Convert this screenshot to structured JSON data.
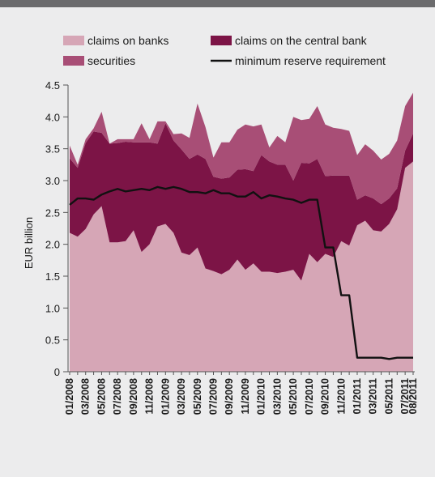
{
  "chart_data": {
    "type": "area",
    "title": "",
    "ylabel": "EUR billion",
    "xlabel": "",
    "ylim": [
      0,
      4.5
    ],
    "yticks": [
      0,
      0.5,
      1.0,
      1.5,
      2.0,
      2.5,
      3.0,
      3.5,
      4.0,
      4.5
    ],
    "ytick_labels": [
      "0",
      "0.5",
      "1.0",
      "1.5",
      "2.0",
      "2.5",
      "3.0",
      "3.5",
      "4.0",
      "4.5"
    ],
    "x": [
      "01/2008",
      "02/2008",
      "03/2008",
      "04/2008",
      "05/2008",
      "06/2008",
      "07/2008",
      "08/2008",
      "09/2008",
      "10/2008",
      "11/2008",
      "12/2008",
      "01/2009",
      "02/2009",
      "03/2009",
      "04/2009",
      "05/2009",
      "06/2009",
      "07/2009",
      "08/2009",
      "09/2009",
      "10/2009",
      "11/2009",
      "12/2009",
      "01/2010",
      "02/2010",
      "03/2010",
      "04/2010",
      "05/2010",
      "06/2010",
      "07/2010",
      "08/2010",
      "09/2010",
      "10/2010",
      "11/2010",
      "12/2010",
      "01/2011",
      "02/2011",
      "03/2011",
      "04/2011",
      "05/2011",
      "06/2011",
      "07/2011",
      "08/2011"
    ],
    "xtick_labels": [
      "01/2008",
      "03/2008",
      "05/2008",
      "07/2008",
      "09/2008",
      "11/2008",
      "01/2009",
      "03/2009",
      "05/2009",
      "07/2009",
      "09/2009",
      "11/2009",
      "01/2010",
      "03/2010",
      "05/2010",
      "07/2010",
      "09/2010",
      "11/2010",
      "01/2011",
      "03/2011",
      "05/2011",
      "07/2011",
      "08/2011"
    ],
    "legend_position": "top",
    "series": [
      {
        "name": "claims on banks",
        "kind": "stacked-area",
        "color": "#d6a6b6",
        "values": [
          2.18,
          2.12,
          2.24,
          2.47,
          2.6,
          2.03,
          2.03,
          2.05,
          2.22,
          1.88,
          2.0,
          2.28,
          2.32,
          2.18,
          1.87,
          1.83,
          1.95,
          1.62,
          1.58,
          1.53,
          1.6,
          1.76,
          1.6,
          1.7,
          1.57,
          1.57,
          1.55,
          1.57,
          1.6,
          1.43,
          1.85,
          1.72,
          1.85,
          1.8,
          2.05,
          1.98,
          2.3,
          2.37,
          2.22,
          2.2,
          2.32,
          2.55,
          3.2,
          3.3
        ]
      },
      {
        "name": "claims on the central bank",
        "kind": "stacked-area",
        "color": "#7c1446",
        "values": [
          1.17,
          1.08,
          1.35,
          1.3,
          1.15,
          1.55,
          1.56,
          1.56,
          1.38,
          1.72,
          1.6,
          1.3,
          1.58,
          1.45,
          1.62,
          1.51,
          1.46,
          1.72,
          1.48,
          1.5,
          1.45,
          1.41,
          1.58,
          1.45,
          1.83,
          1.73,
          1.7,
          1.68,
          1.4,
          1.85,
          1.42,
          1.62,
          1.22,
          1.28,
          1.03,
          1.1,
          0.4,
          0.4,
          0.5,
          0.43,
          0.4,
          0.33,
          0.27,
          0.44
        ]
      },
      {
        "name": "securities",
        "kind": "stacked-area",
        "color": "#a84e76",
        "values": [
          0.2,
          0.05,
          0.06,
          0.05,
          0.33,
          0.0,
          0.06,
          0.04,
          0.05,
          0.3,
          0.05,
          0.35,
          0.03,
          0.1,
          0.25,
          0.33,
          0.8,
          0.5,
          0.3,
          0.57,
          0.55,
          0.63,
          0.7,
          0.7,
          0.48,
          0.22,
          0.45,
          0.35,
          1.0,
          0.67,
          0.7,
          0.83,
          0.81,
          0.75,
          0.73,
          0.7,
          0.7,
          0.8,
          0.75,
          0.7,
          0.7,
          0.75,
          0.7,
          0.64
        ]
      },
      {
        "name": "minimum reserve requirement",
        "kind": "line",
        "color": "#111111",
        "values": [
          2.62,
          2.72,
          2.72,
          2.7,
          2.78,
          2.83,
          2.87,
          2.83,
          2.85,
          2.87,
          2.85,
          2.9,
          2.87,
          2.9,
          2.87,
          2.82,
          2.82,
          2.8,
          2.85,
          2.8,
          2.8,
          2.75,
          2.75,
          2.82,
          2.72,
          2.77,
          2.75,
          2.72,
          2.7,
          2.65,
          2.7,
          2.7,
          1.95,
          1.95,
          1.2,
          1.2,
          0.22,
          0.22,
          0.22,
          0.22,
          0.2,
          0.22,
          0.22,
          0.22
        ]
      }
    ]
  },
  "colors": {
    "background": "#ececed",
    "top_bar": "#6b6b6d",
    "axis": "#555555"
  }
}
